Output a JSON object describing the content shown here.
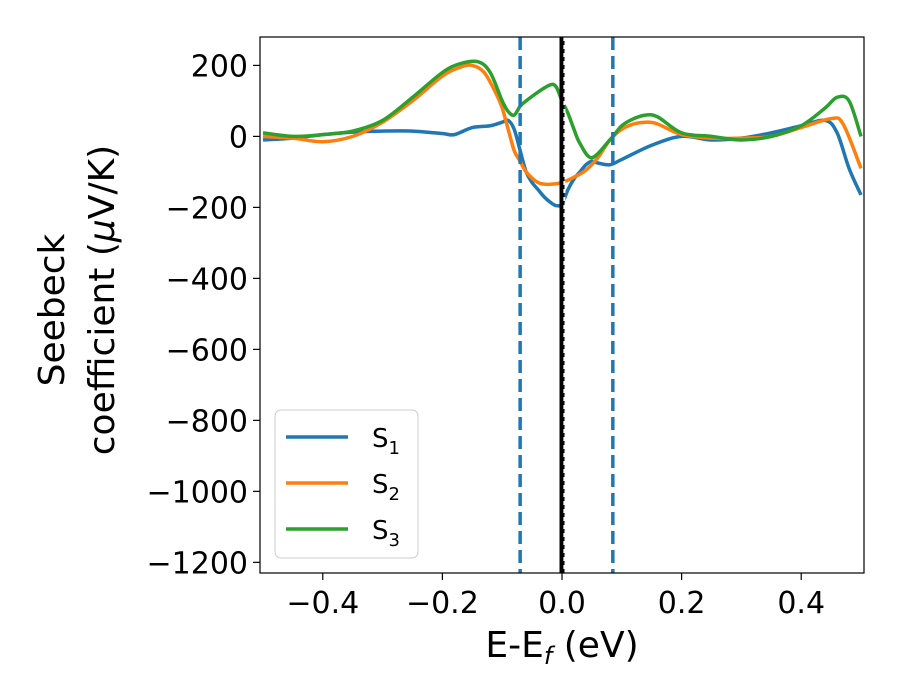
{
  "chart_data": {
    "type": "line",
    "title": "",
    "xlabel": {
      "main": "E-E",
      "sub": "f",
      "unit": " (eV)"
    },
    "ylabel": {
      "line1": "Seebeck",
      "line2": "coefficient  (",
      "mu": "μ",
      "unit": "V/K)"
    },
    "xlim": [
      -0.505,
      0.505
    ],
    "ylim": [
      -1230,
      280
    ],
    "xticks": [
      -0.4,
      -0.2,
      0.0,
      0.2,
      0.4
    ],
    "xtick_labels": [
      "−0.4",
      "−0.2",
      "0.0",
      "0.2",
      "0.4"
    ],
    "yticks": [
      200,
      0,
      -200,
      -400,
      -600,
      -800,
      -1000,
      -1200
    ],
    "ytick_labels": [
      "200",
      "0",
      "−200",
      "−400",
      "−600",
      "−800",
      "−1000",
      "−1200"
    ],
    "grid": false,
    "legend_position": "lower-left",
    "vlines": [
      {
        "x": -0.07,
        "style": "dashed",
        "color": "#1f77b4"
      },
      {
        "x": 0.085,
        "style": "dashed",
        "color": "#1f77b4"
      },
      {
        "x": 0.0,
        "style": "solid",
        "color": "#000000"
      },
      {
        "x": 0.004,
        "style": "dotted",
        "color": "#ffffff"
      }
    ],
    "series": [
      {
        "name": "S",
        "sub": "1",
        "color": "#1f77b4",
        "x": [
          -0.5,
          -0.45,
          -0.4,
          -0.35,
          -0.3,
          -0.25,
          -0.2,
          -0.18,
          -0.15,
          -0.12,
          -0.1,
          -0.09,
          -0.08,
          -0.07,
          -0.06,
          -0.05,
          -0.04,
          -0.03,
          -0.02,
          -0.01,
          0.0,
          0.01,
          0.02,
          0.03,
          0.04,
          0.05,
          0.06,
          0.08,
          0.1,
          0.15,
          0.2,
          0.25,
          0.3,
          0.35,
          0.4,
          0.44,
          0.46,
          0.48,
          0.5
        ],
        "y": [
          -10,
          -5,
          5,
          12,
          15,
          15,
          8,
          5,
          25,
          30,
          40,
          45,
          20,
          -40,
          -100,
          -130,
          -150,
          -170,
          -185,
          -195,
          -190,
          -150,
          -120,
          -100,
          -80,
          -70,
          -75,
          -80,
          -65,
          -25,
          0,
          -10,
          -5,
          10,
          30,
          45,
          10,
          -90,
          -165
        ]
      },
      {
        "name": "S",
        "sub": "2",
        "color": "#ff7f0e",
        "x": [
          -0.5,
          -0.45,
          -0.4,
          -0.35,
          -0.3,
          -0.25,
          -0.2,
          -0.17,
          -0.15,
          -0.13,
          -0.11,
          -0.1,
          -0.09,
          -0.08,
          -0.07,
          -0.06,
          -0.04,
          -0.02,
          0.0,
          0.02,
          0.04,
          0.06,
          0.08,
          0.1,
          0.12,
          0.14,
          0.16,
          0.2,
          0.25,
          0.3,
          0.35,
          0.4,
          0.45,
          0.47,
          0.5
        ],
        "y": [
          0,
          -5,
          -15,
          0,
          40,
          100,
          170,
          195,
          200,
          180,
          120,
          80,
          20,
          -40,
          -70,
          -100,
          -130,
          -135,
          -130,
          -115,
          -95,
          -60,
          -10,
          20,
          35,
          40,
          35,
          5,
          -5,
          -5,
          0,
          25,
          50,
          35,
          -90
        ]
      },
      {
        "name": "S",
        "sub": "3",
        "color": "#2ca02c",
        "x": [
          -0.5,
          -0.45,
          -0.4,
          -0.35,
          -0.3,
          -0.25,
          -0.2,
          -0.17,
          -0.14,
          -0.12,
          -0.1,
          -0.09,
          -0.08,
          -0.07,
          -0.06,
          -0.04,
          -0.02,
          -0.01,
          0.0,
          0.01,
          0.02,
          0.03,
          0.05,
          0.08,
          0.1,
          0.12,
          0.14,
          0.16,
          0.2,
          0.25,
          0.3,
          0.35,
          0.4,
          0.44,
          0.46,
          0.48,
          0.5
        ],
        "y": [
          10,
          0,
          5,
          15,
          45,
          110,
          180,
          205,
          210,
          180,
          100,
          70,
          60,
          85,
          100,
          125,
          145,
          140,
          100,
          65,
          20,
          -20,
          -60,
          -10,
          30,
          50,
          60,
          55,
          10,
          0,
          -10,
          0,
          30,
          80,
          110,
          100,
          0
        ]
      }
    ]
  }
}
